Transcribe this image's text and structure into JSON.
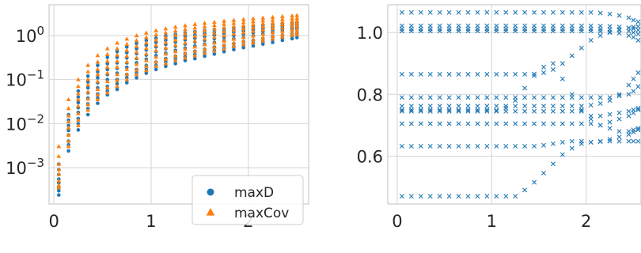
{
  "colors": {
    "maxD": "#1f77b4",
    "maxCov": "#ff7f0e"
  },
  "chart_data": [
    {
      "type": "scatter",
      "yscale": "log",
      "xlim": [
        -0.05,
        2.62
      ],
      "ylim": [
        0.00015,
        5.0
      ],
      "grid": true,
      "legend_position": "bottom-right",
      "x_ticks": [
        {
          "value": 0,
          "label": "0"
        },
        {
          "value": 1,
          "label": "1"
        },
        {
          "value": 2,
          "label": "2"
        }
      ],
      "y_ticks": [
        {
          "value": 0.001,
          "base": "10",
          "exp": "−3"
        },
        {
          "value": 0.01,
          "base": "10",
          "exp": "−2"
        },
        {
          "value": 0.1,
          "base": "10",
          "exp": "−1"
        },
        {
          "value": 1,
          "base": "10",
          "exp": "0"
        }
      ],
      "x": [
        0.05,
        0.15,
        0.25,
        0.35,
        0.45,
        0.55,
        0.65,
        0.75,
        0.85,
        0.95,
        1.05,
        1.15,
        1.25,
        1.35,
        1.45,
        1.55,
        1.65,
        1.75,
        1.85,
        1.95,
        2.05,
        2.15,
        2.25,
        2.35,
        2.45,
        2.5
      ],
      "series": [
        {
          "name": "maxD",
          "marker": "circle",
          "curves": [
            [
              0.00024,
              0.0024,
              0.0072,
              0.016,
              0.029,
              0.045,
              0.06,
              0.085,
              0.11,
              0.14,
              0.17,
              0.2,
              0.23,
              0.27,
              0.3,
              0.34,
              0.38,
              0.43,
              0.48,
              0.53,
              0.58,
              0.64,
              0.7,
              0.78,
              0.85,
              0.9
            ],
            [
              0.0003,
              0.0033,
              0.01,
              0.022,
              0.038,
              0.055,
              0.08,
              0.11,
              0.14,
              0.17,
              0.21,
              0.25,
              0.29,
              0.33,
              0.37,
              0.41,
              0.46,
              0.51,
              0.56,
              0.62,
              0.68,
              0.74,
              0.81,
              0.9,
              0.98,
              1.03
            ],
            [
              0.00035,
              0.004,
              0.013,
              0.028,
              0.047,
              0.07,
              0.1,
              0.13,
              0.17,
              0.21,
              0.25,
              0.3,
              0.34,
              0.39,
              0.44,
              0.49,
              0.55,
              0.6,
              0.66,
              0.73,
              0.79,
              0.86,
              0.95,
              1.03,
              1.12,
              1.18
            ],
            [
              0.00045,
              0.0055,
              0.018,
              0.038,
              0.065,
              0.1,
              0.14,
              0.19,
              0.24,
              0.29,
              0.35,
              0.4,
              0.46,
              0.52,
              0.58,
              0.64,
              0.7,
              0.77,
              0.84,
              0.91,
              0.99,
              1.07,
              1.16,
              1.25,
              1.34,
              1.4
            ],
            [
              0.00055,
              0.007,
              0.023,
              0.05,
              0.085,
              0.13,
              0.18,
              0.24,
              0.3,
              0.36,
              0.43,
              0.5,
              0.57,
              0.64,
              0.71,
              0.78,
              0.85,
              0.92,
              1.0,
              1.08,
              1.16,
              1.24,
              1.32,
              1.4,
              1.48,
              1.52
            ],
            [
              0.0007,
              0.009,
              0.03,
              0.065,
              0.11,
              0.17,
              0.24,
              0.31,
              0.39,
              0.47,
              0.55,
              0.63,
              0.71,
              0.79,
              0.87,
              0.95,
              1.03,
              1.1,
              1.18,
              1.25,
              1.32,
              1.4,
              1.46,
              1.53,
              1.6,
              1.64
            ],
            [
              0.0009,
              0.012,
              0.04,
              0.088,
              0.15,
              0.23,
              0.32,
              0.41,
              0.5,
              0.6,
              0.69,
              0.78,
              0.87,
              0.95,
              1.03,
              1.11,
              1.18,
              1.26,
              1.33,
              1.4,
              1.46,
              1.53,
              1.59,
              1.65,
              1.71,
              1.75
            ],
            [
              0.0012,
              0.016,
              0.055,
              0.12,
              0.21,
              0.32,
              0.43,
              0.55,
              0.66,
              0.77,
              0.87,
              0.97,
              1.06,
              1.15,
              1.23,
              1.31,
              1.38,
              1.45,
              1.52,
              1.58,
              1.65,
              1.71,
              1.76,
              1.82,
              1.88,
              1.92
            ]
          ]
        },
        {
          "name": "maxCov",
          "marker": "triangle",
          "curves": [
            [
              0.00035,
              0.003,
              0.009,
              0.02,
              0.035,
              0.05,
              0.07,
              0.1,
              0.13,
              0.16,
              0.2,
              0.23,
              0.27,
              0.31,
              0.35,
              0.4,
              0.45,
              0.5,
              0.56,
              0.62,
              0.68,
              0.75,
              0.83,
              0.92,
              1.0,
              1.05
            ],
            [
              0.0004,
              0.004,
              0.012,
              0.027,
              0.045,
              0.065,
              0.095,
              0.13,
              0.165,
              0.2,
              0.25,
              0.29,
              0.34,
              0.39,
              0.44,
              0.49,
              0.55,
              0.61,
              0.67,
              0.74,
              0.81,
              0.88,
              0.96,
              1.06,
              1.15,
              1.2
            ],
            [
              0.0005,
              0.0055,
              0.017,
              0.036,
              0.06,
              0.09,
              0.13,
              0.17,
              0.22,
              0.27,
              0.32,
              0.38,
              0.43,
              0.49,
              0.55,
              0.62,
              0.68,
              0.75,
              0.82,
              0.9,
              0.98,
              1.06,
              1.15,
              1.25,
              1.34,
              1.4
            ],
            [
              0.0007,
              0.008,
              0.025,
              0.052,
              0.09,
              0.14,
              0.19,
              0.25,
              0.31,
              0.38,
              0.45,
              0.52,
              0.6,
              0.67,
              0.75,
              0.83,
              0.91,
              0.99,
              1.08,
              1.16,
              1.25,
              1.34,
              1.43,
              1.52,
              1.62,
              1.67
            ],
            [
              0.0009,
              0.011,
              0.035,
              0.075,
              0.13,
              0.19,
              0.26,
              0.34,
              0.42,
              0.51,
              0.6,
              0.69,
              0.78,
              0.87,
              0.96,
              1.05,
              1.14,
              1.23,
              1.32,
              1.41,
              1.5,
              1.59,
              1.68,
              1.77,
              1.86,
              1.91
            ],
            [
              0.0012,
              0.015,
              0.048,
              0.1,
              0.17,
              0.26,
              0.36,
              0.46,
              0.57,
              0.68,
              0.79,
              0.9,
              1.01,
              1.11,
              1.21,
              1.31,
              1.41,
              1.5,
              1.6,
              1.69,
              1.78,
              1.87,
              1.95,
              2.03,
              2.12,
              2.17
            ],
            [
              0.0018,
              0.022,
              0.07,
              0.15,
              0.25,
              0.37,
              0.5,
              0.63,
              0.77,
              0.9,
              1.03,
              1.15,
              1.27,
              1.38,
              1.49,
              1.59,
              1.69,
              1.79,
              1.89,
              1.98,
              2.07,
              2.16,
              2.24,
              2.33,
              2.41,
              2.46
            ],
            [
              0.003,
              0.035,
              0.1,
              0.21,
              0.35,
              0.5,
              0.67,
              0.83,
              0.99,
              1.14,
              1.28,
              1.42,
              1.55,
              1.67,
              1.79,
              1.9,
              2.0,
              2.11,
              2.21,
              2.31,
              2.41,
              2.5,
              2.59,
              2.69,
              2.78,
              2.85
            ]
          ]
        }
      ],
      "legend": [
        {
          "label": "maxD",
          "marker": "circle"
        },
        {
          "label": "maxCov",
          "marker": "triangle"
        }
      ]
    },
    {
      "type": "scatter",
      "marker": "x",
      "xlim": [
        -0.1,
        2.58
      ],
      "ylim": [
        0.445,
        1.09
      ],
      "grid": true,
      "x_ticks": [
        {
          "value": 0,
          "label": "0"
        },
        {
          "value": 1,
          "label": "1"
        },
        {
          "value": 2,
          "label": "2"
        }
      ],
      "y_ticks": [
        {
          "value": 0.6,
          "label": "0.6"
        },
        {
          "value": 0.8,
          "label": "0.8"
        },
        {
          "value": 1.0,
          "label": "1.0"
        }
      ],
      "x": [
        0.05,
        0.15,
        0.25,
        0.35,
        0.45,
        0.55,
        0.65,
        0.75,
        0.85,
        0.95,
        1.05,
        1.15,
        1.25,
        1.35,
        1.45,
        1.55,
        1.65,
        1.75,
        1.85,
        1.95,
        2.05,
        2.15,
        2.25,
        2.35,
        2.45,
        2.5,
        2.55
      ],
      "series": [
        {
          "values": [
            1.065,
            1.065,
            1.065,
            1.065,
            1.065,
            1.065,
            1.065,
            1.065,
            1.065,
            1.065,
            1.065,
            1.065,
            1.065,
            1.065,
            1.065,
            1.065,
            1.065,
            1.065,
            1.065,
            1.065,
            1.065,
            1.063,
            1.06,
            1.055,
            1.048,
            1.04,
            1.035
          ]
        },
        {
          "values": [
            1.022,
            1.022,
            1.022,
            1.022,
            1.022,
            1.022,
            1.022,
            1.022,
            1.022,
            1.022,
            1.022,
            1.022,
            1.022,
            1.022,
            1.022,
            1.022,
            1.022,
            1.022,
            1.022,
            1.022,
            1.022,
            1.021,
            1.02,
            1.018,
            1.015,
            1.012,
            1.008
          ]
        },
        {
          "values": [
            1.012,
            1.012,
            1.012,
            1.012,
            1.012,
            1.012,
            1.012,
            1.012,
            1.012,
            1.012,
            1.012,
            1.012,
            1.012,
            1.012,
            1.012,
            1.012,
            1.012,
            1.012,
            1.012,
            1.012,
            1.012,
            1.011,
            1.01,
            1.008,
            1.005,
            1.0,
            0.995
          ]
        },
        {
          "values": [
            1.005,
            1.005,
            1.005,
            1.005,
            1.005,
            1.005,
            1.005,
            1.005,
            1.005,
            1.005,
            1.005,
            1.005,
            1.005,
            1.005,
            1.005,
            1.005,
            1.005,
            1.005,
            1.005,
            1.005,
            1.005,
            1.004,
            1.002,
            0.998,
            0.99,
            0.985,
            0.975
          ]
        },
        {
          "values": [
            0.865,
            0.865,
            0.865,
            0.865,
            0.865,
            0.865,
            0.865,
            0.865,
            0.865,
            0.865,
            0.865,
            0.865,
            0.865,
            0.865,
            0.866,
            0.87,
            0.88,
            0.9,
            0.925,
            0.95,
            0.975,
            0.99,
            1.0,
            1.01,
            1.015,
            1.018,
            1.02
          ]
        },
        {
          "values": [
            0.79,
            0.79,
            0.79,
            0.79,
            0.79,
            0.79,
            0.79,
            0.79,
            0.79,
            0.79,
            0.79,
            0.79,
            0.79,
            0.79,
            0.79,
            0.79,
            0.79,
            0.79,
            0.79,
            0.79,
            0.79,
            0.79,
            0.79,
            0.795,
            0.8,
            0.81,
            0.825
          ]
        },
        {
          "values": [
            0.762,
            0.762,
            0.762,
            0.762,
            0.762,
            0.762,
            0.762,
            0.762,
            0.762,
            0.762,
            0.762,
            0.762,
            0.762,
            0.762,
            0.762,
            0.762,
            0.762,
            0.762,
            0.762,
            0.762,
            0.765,
            0.77,
            0.78,
            0.8,
            0.83,
            0.85,
            0.87
          ]
        },
        {
          "values": [
            0.75,
            0.75,
            0.75,
            0.75,
            0.75,
            0.75,
            0.75,
            0.75,
            0.75,
            0.75,
            0.748,
            0.755,
            0.78,
            0.82,
            0.86,
            0.888,
            0.9,
            0.85,
            0.8,
            0.75,
            0.73,
            0.73,
            0.735,
            0.74,
            0.745,
            0.75,
            0.755
          ]
        },
        {
          "values": [
            0.745,
            0.745,
            0.745,
            0.745,
            0.745,
            0.745,
            0.745,
            0.745,
            0.745,
            0.745,
            0.745,
            0.745,
            0.745,
            0.745,
            0.745,
            0.745,
            0.745,
            0.745,
            0.745,
            0.745,
            0.72,
            0.7,
            0.71,
            0.72,
            0.73,
            0.74,
            0.75
          ]
        },
        {
          "values": [
            0.705,
            0.705,
            0.705,
            0.705,
            0.705,
            0.705,
            0.705,
            0.705,
            0.705,
            0.705,
            0.705,
            0.705,
            0.705,
            0.705,
            0.705,
            0.705,
            0.705,
            0.705,
            0.705,
            0.705,
            0.705,
            0.7,
            0.69,
            0.68,
            0.68,
            0.685,
            0.69
          ]
        },
        {
          "values": [
            0.632,
            0.632,
            0.632,
            0.632,
            0.632,
            0.632,
            0.632,
            0.632,
            0.632,
            0.632,
            0.632,
            0.632,
            0.632,
            0.632,
            0.632,
            0.635,
            0.64,
            0.645,
            0.648,
            0.648,
            0.645,
            0.648,
            0.655,
            0.662,
            0.67,
            0.678,
            0.685
          ]
        },
        {
          "values": [
            0.47,
            0.47,
            0.47,
            0.47,
            0.47,
            0.47,
            0.47,
            0.47,
            0.47,
            0.47,
            0.47,
            0.47,
            0.47,
            0.49,
            0.515,
            0.545,
            0.575,
            0.605,
            0.625,
            0.64,
            0.645,
            0.647,
            0.648,
            0.648,
            0.648,
            0.648,
            0.648
          ]
        }
      ]
    }
  ]
}
